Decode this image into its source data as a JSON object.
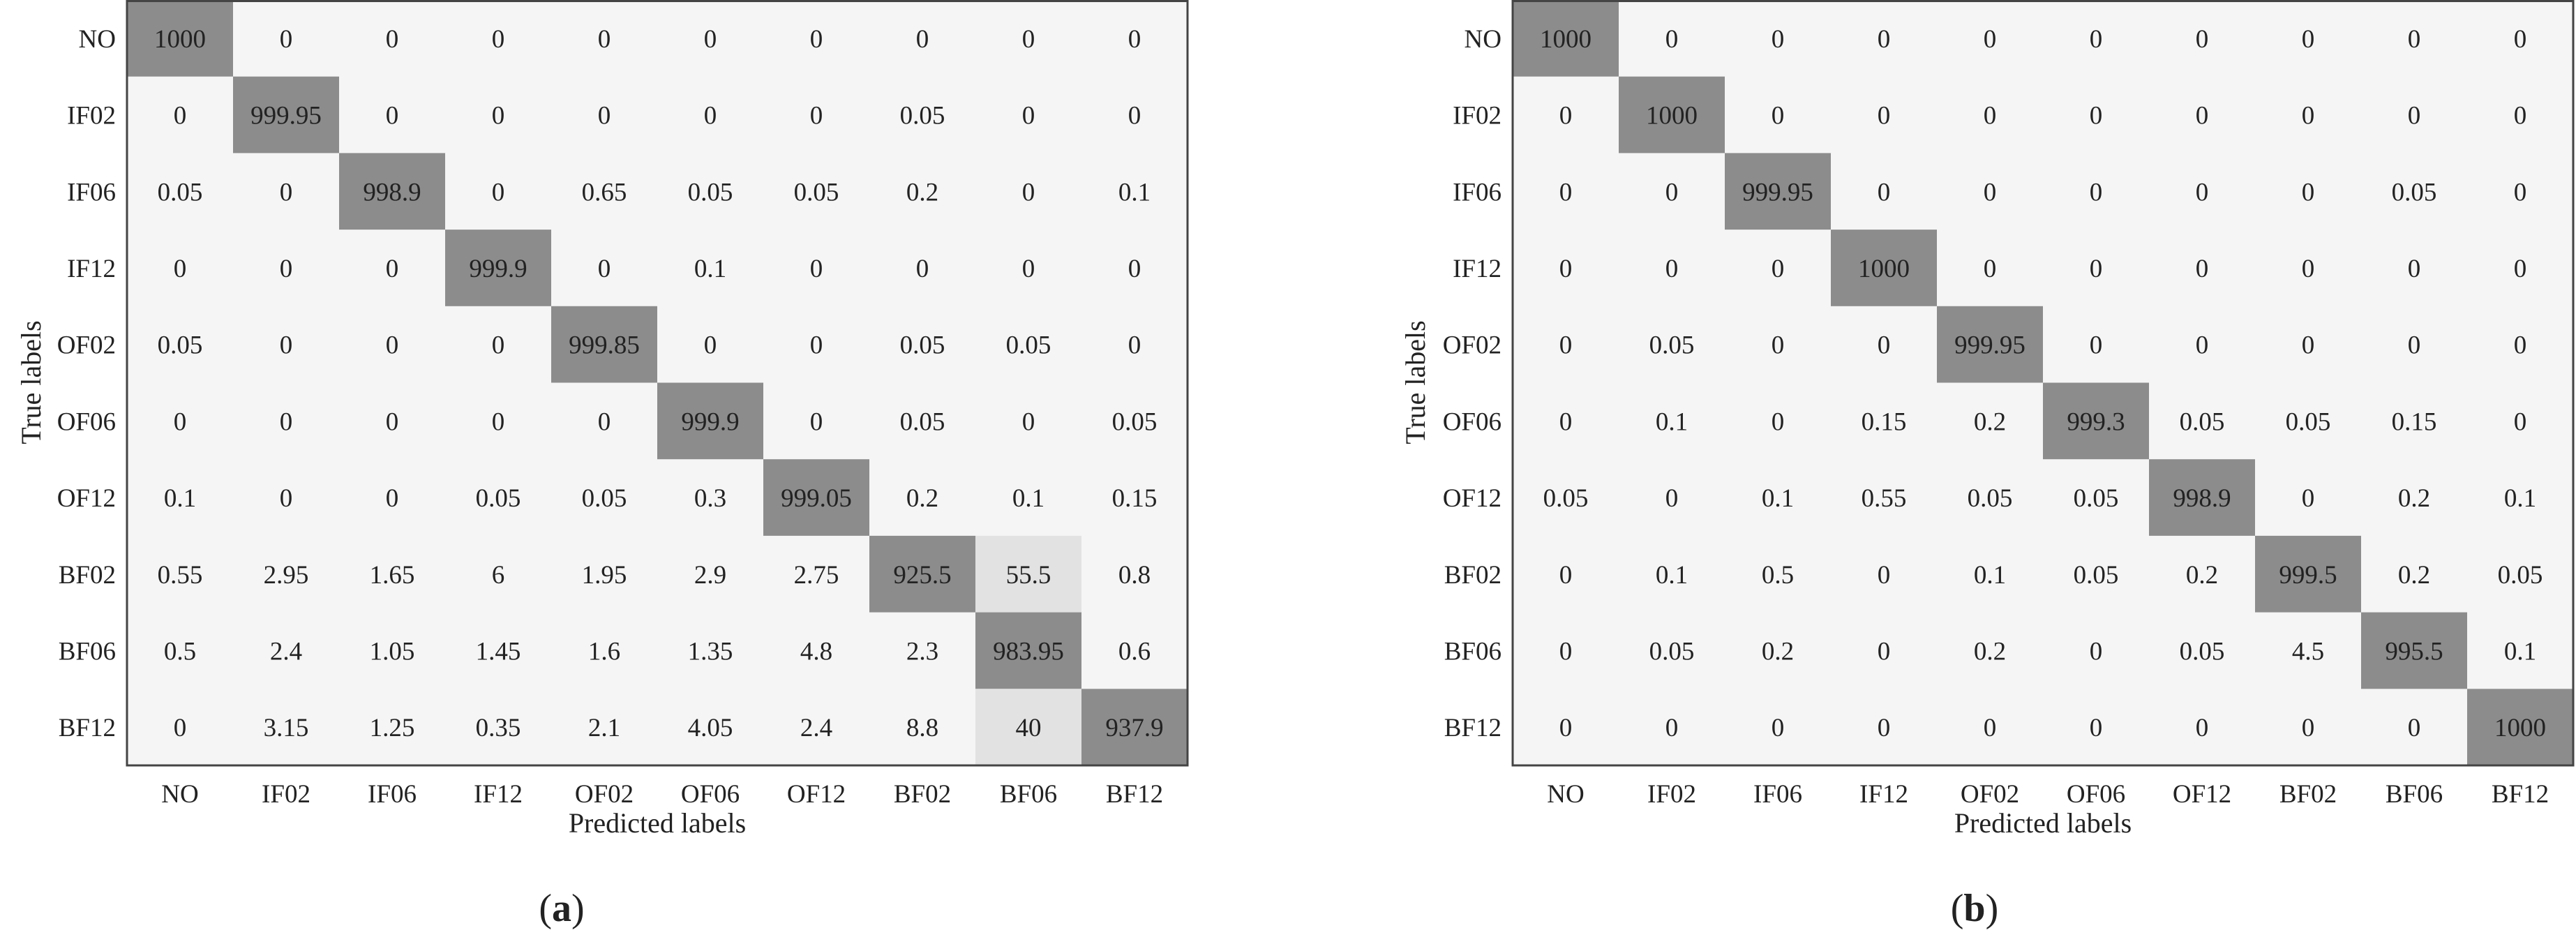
{
  "colors": {
    "cell_background": "#f5f5f5",
    "highlight_dark": "#8c8c8c",
    "highlight_light": "#e2e2e2",
    "axis": "#444444",
    "text": "#222222"
  },
  "chart_data": [
    {
      "type": "heatmap",
      "panel_label": "a",
      "xlabel": "Predicted labels",
      "ylabel": "True labels",
      "x_categories": [
        "NO",
        "IF02",
        "IF06",
        "IF12",
        "OF02",
        "OF06",
        "OF12",
        "BF02",
        "BF06",
        "BF12"
      ],
      "y_categories": [
        "NO",
        "IF02",
        "IF06",
        "IF12",
        "OF02",
        "OF06",
        "OF12",
        "BF02",
        "BF06",
        "BF12"
      ],
      "values": [
        [
          "1000",
          "0",
          "0",
          "0",
          "0",
          "0",
          "0",
          "0",
          "0",
          "0"
        ],
        [
          "0",
          "999.95",
          "0",
          "0",
          "0",
          "0",
          "0",
          "0.05",
          "0",
          "0"
        ],
        [
          "0.05",
          "0",
          "998.9",
          "0",
          "0.65",
          "0.05",
          "0.05",
          "0.2",
          "0",
          "0.1"
        ],
        [
          "0",
          "0",
          "0",
          "999.9",
          "0",
          "0.1",
          "0",
          "0",
          "0",
          "0"
        ],
        [
          "0.05",
          "0",
          "0",
          "0",
          "999.85",
          "0",
          "0",
          "0.05",
          "0.05",
          "0"
        ],
        [
          "0",
          "0",
          "0",
          "0",
          "0",
          "999.9",
          "0",
          "0.05",
          "0",
          "0.05"
        ],
        [
          "0.1",
          "0",
          "0",
          "0.05",
          "0.05",
          "0.3",
          "999.05",
          "0.2",
          "0.1",
          "0.15"
        ],
        [
          "0.55",
          "2.95",
          "1.65",
          "6",
          "1.95",
          "2.9",
          "2.75",
          "925.5",
          "55.5",
          "0.8"
        ],
        [
          "0.5",
          "2.4",
          "1.05",
          "1.45",
          "1.6",
          "1.35",
          "4.8",
          "2.3",
          "983.95",
          "0.6"
        ],
        [
          "0",
          "3.15",
          "1.25",
          "0.35",
          "2.1",
          "4.05",
          "2.4",
          "8.8",
          "40",
          "937.9"
        ]
      ]
    },
    {
      "type": "heatmap",
      "panel_label": "b",
      "xlabel": "Predicted labels",
      "ylabel": "True labels",
      "x_categories": [
        "NO",
        "IF02",
        "IF06",
        "IF12",
        "OF02",
        "OF06",
        "OF12",
        "BF02",
        "BF06",
        "BF12"
      ],
      "y_categories": [
        "NO",
        "IF02",
        "IF06",
        "IF12",
        "OF02",
        "OF06",
        "OF12",
        "BF02",
        "BF06",
        "BF12"
      ],
      "values": [
        [
          "1000",
          "0",
          "0",
          "0",
          "0",
          "0",
          "0",
          "0",
          "0",
          "0"
        ],
        [
          "0",
          "1000",
          "0",
          "0",
          "0",
          "0",
          "0",
          "0",
          "0",
          "0"
        ],
        [
          "0",
          "0",
          "999.95",
          "0",
          "0",
          "0",
          "0",
          "0",
          "0.05",
          "0"
        ],
        [
          "0",
          "0",
          "0",
          "1000",
          "0",
          "0",
          "0",
          "0",
          "0",
          "0"
        ],
        [
          "0",
          "0.05",
          "0",
          "0",
          "999.95",
          "0",
          "0",
          "0",
          "0",
          "0"
        ],
        [
          "0",
          "0.1",
          "0",
          "0.15",
          "0.2",
          "999.3",
          "0.05",
          "0.05",
          "0.15",
          "0"
        ],
        [
          "0.05",
          "0",
          "0.1",
          "0.55",
          "0.05",
          "0.05",
          "998.9",
          "0",
          "0.2",
          "0.1"
        ],
        [
          "0",
          "0.1",
          "0.5",
          "0",
          "0.1",
          "0.05",
          "0.2",
          "999.5",
          "0.2",
          "0.05"
        ],
        [
          "0",
          "0.05",
          "0.2",
          "0",
          "0.2",
          "0",
          "0.05",
          "4.5",
          "995.5",
          "0.1"
        ],
        [
          "0",
          "0",
          "0",
          "0",
          "0",
          "0",
          "0",
          "0",
          "0",
          "1000"
        ]
      ]
    }
  ]
}
